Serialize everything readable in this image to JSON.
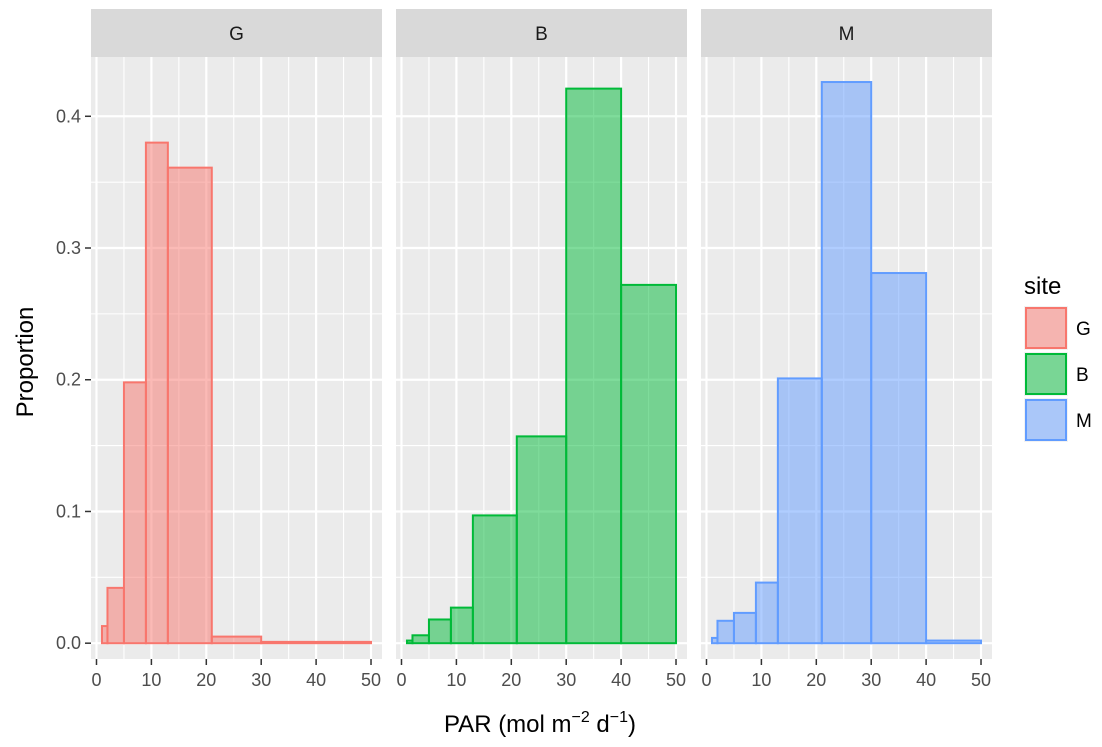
{
  "chart_data": {
    "type": "histogram",
    "facet_by": "site",
    "facets": [
      {
        "name": "G",
        "color": "#F8766D",
        "bins": [
          {
            "x0": 1,
            "x1": 2,
            "value": 0.013
          },
          {
            "x0": 2,
            "x1": 5,
            "value": 0.042
          },
          {
            "x0": 5,
            "x1": 9,
            "value": 0.198
          },
          {
            "x0": 9,
            "x1": 13,
            "value": 0.38
          },
          {
            "x0": 13,
            "x1": 21,
            "value": 0.361
          },
          {
            "x0": 21,
            "x1": 30,
            "value": 0.005
          },
          {
            "x0": 30,
            "x1": 50,
            "value": 0.001
          }
        ]
      },
      {
        "name": "B",
        "color": "#00BA38",
        "bins": [
          {
            "x0": 1,
            "x1": 2,
            "value": 0.002
          },
          {
            "x0": 2,
            "x1": 5,
            "value": 0.006
          },
          {
            "x0": 5,
            "x1": 9,
            "value": 0.018
          },
          {
            "x0": 9,
            "x1": 13,
            "value": 0.027
          },
          {
            "x0": 13,
            "x1": 21,
            "value": 0.097
          },
          {
            "x0": 21,
            "x1": 30,
            "value": 0.157
          },
          {
            "x0": 30,
            "x1": 40,
            "value": 0.421
          },
          {
            "x0": 40,
            "x1": 50,
            "value": 0.272
          }
        ]
      },
      {
        "name": "M",
        "color": "#619CFF",
        "bins": [
          {
            "x0": 1,
            "x1": 2,
            "value": 0.004
          },
          {
            "x0": 2,
            "x1": 5,
            "value": 0.017
          },
          {
            "x0": 5,
            "x1": 9,
            "value": 0.023
          },
          {
            "x0": 9,
            "x1": 13,
            "value": 0.046
          },
          {
            "x0": 13,
            "x1": 21,
            "value": 0.201
          },
          {
            "x0": 21,
            "x1": 30,
            "value": 0.426
          },
          {
            "x0": 30,
            "x1": 40,
            "value": 0.281
          },
          {
            "x0": 40,
            "x1": 50,
            "value": 0.002
          }
        ]
      }
    ],
    "xlim": [
      -1,
      52
    ],
    "ylim": [
      -0.012,
      0.445
    ],
    "x_ticks": [
      0,
      10,
      20,
      30,
      40,
      50
    ],
    "x_minor": [
      5,
      15,
      25,
      35,
      45
    ],
    "y_ticks": [
      0.0,
      0.1,
      0.2,
      0.3,
      0.4
    ],
    "y_tick_labels": [
      "0.0",
      "0.1",
      "0.2",
      "0.3",
      "0.4"
    ],
    "y_minor": [
      0.05,
      0.15,
      0.25,
      0.35
    ],
    "xlabel": "PAR (mol m",
    "xlabel_sup1": "−2",
    "xlabel_mid": " d",
    "xlabel_sup2": "−1",
    "xlabel_end": ")",
    "ylabel": "Proportion",
    "grid": true,
    "legend": {
      "title": "site",
      "position": "right",
      "items": [
        {
          "label": "G",
          "color": "#F8766D"
        },
        {
          "label": "B",
          "color": "#00BA38"
        },
        {
          "label": "M",
          "color": "#619CFF"
        }
      ]
    },
    "theme": {
      "panel_bg": "#EBEBEB",
      "strip_bg": "#D9D9D9",
      "grid_color": "#FFFFFF",
      "tick_color": "#333333",
      "fill_opacity": 0.5
    }
  }
}
